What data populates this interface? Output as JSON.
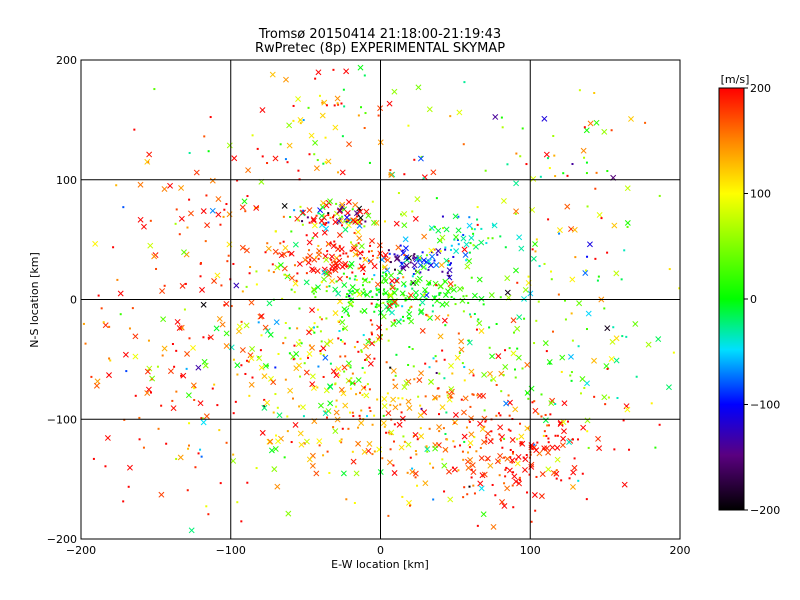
{
  "chart_data": {
    "type": "scatter",
    "title": "Tromsø 20150414 21:18:00-21:19:43",
    "subtitle": "RwPretec (8p) EXPERIMENTAL SKYMAP",
    "xlabel": "E-W location [km]",
    "ylabel": "N-S location [km]",
    "xlim": [
      -200,
      200
    ],
    "ylim": [
      -200,
      200
    ],
    "xticks": [
      "-200",
      "-100",
      "0",
      "100",
      "200"
    ],
    "yticks": [
      "-200",
      "-100",
      "0",
      "100",
      "200"
    ],
    "grid": true,
    "colorbar": {
      "label": "[m/s]",
      "range": [
        -200,
        200
      ],
      "ticks": [
        "200",
        "100",
        "0",
        "-100",
        "-200"
      ],
      "colormap": "rainbow: black(-200) > purple > blue(-100) > cyan > green(0) > yellow(100) > red(200)"
    },
    "marker_types": [
      "x",
      "dot"
    ],
    "clusters": [
      {
        "cx": -25,
        "cy": 70,
        "sx": 18,
        "sy": 6,
        "n": 90,
        "v": 80,
        "vs": 140
      },
      {
        "cx": -30,
        "cy": 35,
        "sx": 22,
        "sy": 10,
        "n": 110,
        "v": 190,
        "vs": 30
      },
      {
        "cx": 20,
        "cy": 30,
        "sx": 12,
        "sy": 8,
        "n": 70,
        "v": -110,
        "vs": 40
      },
      {
        "cx": 10,
        "cy": 5,
        "sx": 30,
        "sy": 10,
        "n": 180,
        "v": 10,
        "vs": 20
      },
      {
        "cx": 55,
        "cy": 50,
        "sx": 15,
        "sy": 10,
        "n": 50,
        "v": -30,
        "vs": 50
      },
      {
        "cx": 95,
        "cy": -130,
        "sx": 25,
        "sy": 20,
        "n": 140,
        "v": 195,
        "vs": 20
      },
      {
        "cx": 30,
        "cy": -110,
        "sx": 45,
        "sy": 25,
        "n": 160,
        "v": 150,
        "vs": 40
      },
      {
        "cx": -20,
        "cy": -50,
        "sx": 50,
        "sy": 40,
        "n": 260,
        "v": 110,
        "vs": 80
      },
      {
        "cx": -40,
        "cy": 150,
        "sx": 25,
        "sy": 25,
        "n": 50,
        "v": 120,
        "vs": 80
      },
      {
        "cx": 120,
        "cy": -40,
        "sx": 40,
        "sy": 40,
        "n": 90,
        "v": 40,
        "vs": 60
      },
      {
        "cx": -140,
        "cy": -60,
        "sx": 40,
        "sy": 50,
        "n": 100,
        "v": 170,
        "vs": 40
      },
      {
        "cx": -120,
        "cy": 60,
        "sx": 30,
        "sy": 40,
        "n": 60,
        "v": 185,
        "vs": 25
      },
      {
        "cx": 130,
        "cy": 100,
        "sx": 30,
        "sy": 40,
        "n": 40,
        "v": 70,
        "vs": 90
      },
      {
        "cx": 0,
        "cy": 0,
        "sx": 110,
        "sy": 110,
        "n": 350,
        "v": 90,
        "vs": 110
      }
    ]
  }
}
